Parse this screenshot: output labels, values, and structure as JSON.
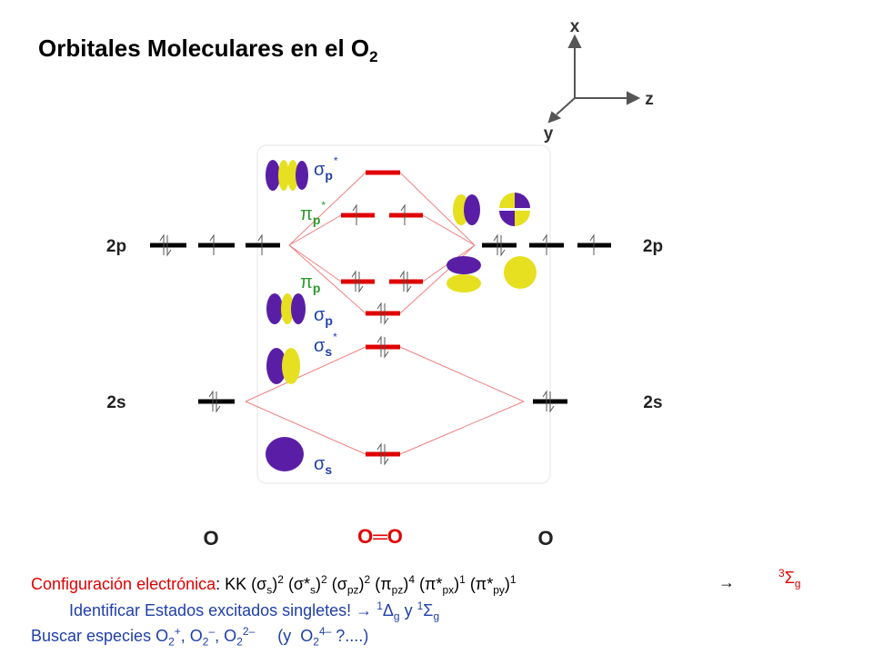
{
  "title": {
    "text": "Orbitales Moleculares en el O",
    "subscript": "2"
  },
  "axes": {
    "x": "x",
    "z": "z",
    "y": "y"
  },
  "atomic_labels": {
    "left": [
      "2p",
      "2s"
    ],
    "right": [
      "2p",
      "2s"
    ]
  },
  "orbital_labels": [
    {
      "symbol": "σ",
      "subscript": "p",
      "superscript": "*"
    },
    {
      "symbol": "π",
      "subscript": "p",
      "superscript": "*"
    },
    {
      "symbol": "π",
      "subscript": "p"
    },
    {
      "symbol": "σ",
      "subscript": "p"
    },
    {
      "symbol": "σ",
      "subscript": "s",
      "superscript": "*"
    },
    {
      "symbol": "σ",
      "subscript": "s"
    }
  ],
  "atoms": [
    "O",
    "O═O",
    "O"
  ],
  "notes": {
    "line1": [
      "Configuración electrónica",
      ": KK (σ",
      "s",
      ")",
      "2",
      " (σ*",
      "s",
      ")",
      "2",
      " (σ",
      "pz",
      ")",
      "2",
      " (π",
      "pz",
      ")",
      "4",
      " (π*",
      "px",
      ")",
      "1",
      " (π*",
      "py",
      ")",
      "1"
    ],
    "arrow": "→",
    "term": [
      "3",
      "Σ",
      "g"
    ],
    "line2": [
      "Identificar Estados excitados singletes! ",
      "→",
      " ",
      "1",
      "Δ",
      "g",
      " y ",
      "1",
      "Σ",
      "g"
    ],
    "line3": [
      "Buscar especies O",
      "2",
      "+",
      ", O",
      "2",
      "–",
      ", O",
      "2",
      "2–",
      "     (y  O",
      "2",
      "4–",
      " ?....)"
    ]
  }
}
